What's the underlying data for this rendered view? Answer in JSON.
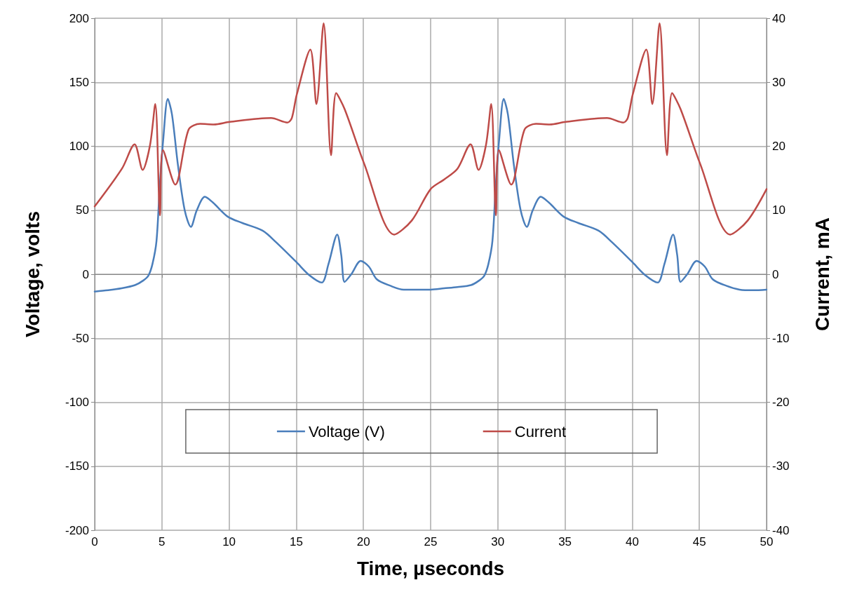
{
  "chart_data": {
    "type": "line",
    "xlabel": "Time, µseconds",
    "ylabel": "Voltage, volts",
    "y2label": "Current, mA",
    "xlim": [
      0,
      50
    ],
    "xticks": [
      0,
      5,
      10,
      15,
      20,
      25,
      30,
      35,
      40,
      45,
      50
    ],
    "ylim": [
      -200,
      200
    ],
    "yticks": [
      -200,
      -150,
      -100,
      -50,
      0,
      50,
      100,
      150,
      200
    ],
    "y2lim": [
      -40,
      40
    ],
    "y2ticks": [
      -40,
      -30,
      -20,
      -10,
      0,
      10,
      20,
      30,
      40
    ],
    "grid": true,
    "legend": "bottom",
    "marker": "none",
    "line_style": "solid",
    "series": [
      {
        "name": "Voltage (V)",
        "color": "#4a7ebb",
        "x": [
          0,
          1,
          2,
          3,
          3.6,
          4,
          4.3,
          4.6,
          4.85,
          5.1,
          5.44,
          5.75,
          6.2,
          6.7,
          7.16,
          7.6,
          8.2,
          8.8,
          9.9,
          11,
          12.5,
          13.5,
          15,
          16,
          16.9,
          17.4,
          18.05,
          18.35,
          18.6,
          19.1,
          19.8,
          20.4,
          21,
          22,
          23,
          24,
          25,
          26,
          27,
          28,
          28.6,
          29,
          29.3,
          29.6,
          29.85,
          30.1,
          30.44,
          30.75,
          31.2,
          31.7,
          32.16,
          32.6,
          33.2,
          33.8,
          34.9,
          36,
          37.5,
          38.5,
          40,
          41,
          41.9,
          42.4,
          43.05,
          43.35,
          43.6,
          44.1,
          44.8,
          45.4,
          46,
          47,
          48,
          49,
          50
        ],
        "values": [
          -13.5,
          -12.5,
          -11,
          -8.5,
          -5,
          -1,
          8,
          26,
          70,
          105,
          137,
          125,
          85,
          50,
          37,
          50,
          60.5,
          56,
          45,
          40,
          34,
          25,
          9.6,
          -1,
          -6.5,
          8,
          31,
          15,
          -6,
          0,
          10.4,
          6,
          -4,
          -9,
          -12,
          -12,
          -12,
          -11,
          -10,
          -8.5,
          -5,
          -1,
          8,
          26,
          70,
          105,
          137,
          125,
          85,
          50,
          37,
          50,
          60.5,
          56,
          45,
          40,
          34,
          25,
          9.6,
          -1,
          -6.5,
          8,
          31,
          15,
          -6,
          0,
          10.4,
          6,
          -4,
          -9,
          -12,
          -12.5,
          -12
        ]
      },
      {
        "name": "Current",
        "color": "#be4b48",
        "axis": "y2",
        "x": [
          0,
          2.03,
          2.97,
          3.57,
          4.12,
          4.51,
          4.86,
          5.08,
          6,
          6.99,
          7.85,
          8.87,
          10.05,
          13.13,
          14.34,
          14.67,
          15.03,
          16.05,
          16.5,
          17.04,
          17.59,
          17.97,
          18.6,
          20.05,
          22.3,
          23.6,
          25,
          26,
          27,
          27.97,
          28.57,
          29.12,
          29.51,
          29.86,
          30.08,
          31,
          31.99,
          32.85,
          33.87,
          35.05,
          38.13,
          39.34,
          39.67,
          40.03,
          41.05,
          41.5,
          42.04,
          42.59,
          42.97,
          43.6,
          45.05,
          47.3,
          48.6,
          50
        ],
        "values": [
          10.6,
          16.5,
          20.3,
          16.3,
          20.2,
          26.6,
          9.2,
          19.4,
          14,
          22.6,
          23.5,
          23.4,
          23.8,
          24.4,
          23.7,
          24.4,
          28,
          35.1,
          26.6,
          39.2,
          18.6,
          28.3,
          25.8,
          17.3,
          6.2,
          8.4,
          13.3,
          14.8,
          16.5,
          20.3,
          16.3,
          20.2,
          26.6,
          9.2,
          19.4,
          14,
          22.6,
          23.5,
          23.4,
          23.8,
          24.4,
          23.7,
          24.4,
          28,
          35.1,
          26.6,
          39.2,
          18.6,
          28.3,
          25.8,
          17.3,
          6.2,
          8.4,
          13.3
        ]
      }
    ]
  }
}
